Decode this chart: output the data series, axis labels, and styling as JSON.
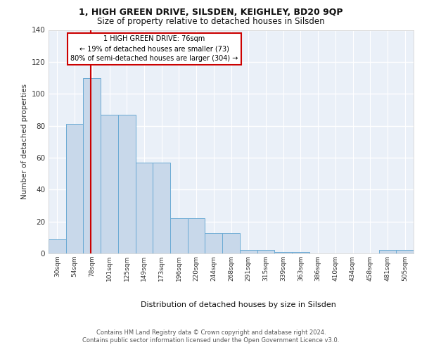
{
  "title1": "1, HIGH GREEN DRIVE, SILSDEN, KEIGHLEY, BD20 9QP",
  "title2": "Size of property relative to detached houses in Silsden",
  "xlabel": "Distribution of detached houses by size in Silsden",
  "ylabel": "Number of detached properties",
  "bin_labels": [
    "30sqm",
    "54sqm",
    "78sqm",
    "101sqm",
    "125sqm",
    "149sqm",
    "173sqm",
    "196sqm",
    "220sqm",
    "244sqm",
    "268sqm",
    "291sqm",
    "315sqm",
    "339sqm",
    "363sqm",
    "386sqm",
    "410sqm",
    "434sqm",
    "458sqm",
    "481sqm",
    "505sqm"
  ],
  "bar_heights": [
    9,
    81,
    110,
    87,
    87,
    57,
    57,
    22,
    22,
    13,
    13,
    2,
    2,
    1,
    1,
    0,
    0,
    0,
    0,
    2,
    2
  ],
  "bar_color": "#c8d8ea",
  "bar_edge_color": "#6aaad4",
  "vline_color": "#cc0000",
  "annotation_text": "1 HIGH GREEN DRIVE: 76sqm\n← 19% of detached houses are smaller (73)\n80% of semi-detached houses are larger (304) →",
  "annotation_box_color": "#ffffff",
  "annotation_box_edge": "#cc0000",
  "background_color": "#eaf0f8",
  "grid_color": "#ffffff",
  "fig_background": "#ffffff",
  "footer": "Contains HM Land Registry data © Crown copyright and database right 2024.\nContains public sector information licensed under the Open Government Licence v3.0.",
  "ylim": [
    0,
    140
  ],
  "yticks": [
    0,
    20,
    40,
    60,
    80,
    100,
    120,
    140
  ]
}
